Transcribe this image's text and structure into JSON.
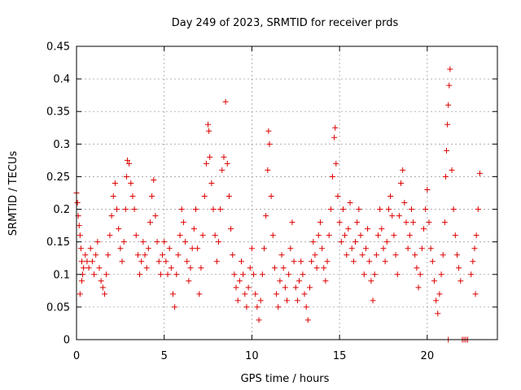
{
  "chart_data": {
    "type": "scatter",
    "title": "Day 249 of 2023, SRMTID for receiver prds",
    "xlabel": "GPS time / hours",
    "ylabel": "SRMTID / TECUs",
    "xlim": [
      0,
      24
    ],
    "ylim": [
      0,
      0.45
    ],
    "xticks": [
      0,
      5,
      10,
      15,
      20
    ],
    "xtick_labels": [
      "0",
      "5",
      "10",
      "15",
      "20"
    ],
    "yticks": [
      0,
      0.05,
      0.1,
      0.15,
      0.2,
      0.25,
      0.3,
      0.35,
      0.4,
      0.45
    ],
    "ytick_labels": [
      "0",
      "0.05",
      "0.1",
      "0.15",
      "0.2",
      "0.25",
      "0.3",
      "0.35",
      "0.4",
      "0.45"
    ],
    "grid": true,
    "marker": "+",
    "color": "#dd0000",
    "series": [
      {
        "name": "prds",
        "points": [
          [
            0.0,
            0.225
          ],
          [
            0.05,
            0.21
          ],
          [
            0.1,
            0.19
          ],
          [
            0.15,
            0.175
          ],
          [
            0.2,
            0.16
          ],
          [
            0.25,
            0.14
          ],
          [
            0.3,
            0.12
          ],
          [
            0.35,
            0.1
          ],
          [
            0.2,
            0.07
          ],
          [
            0.3,
            0.09
          ],
          [
            0.4,
            0.11
          ],
          [
            0.5,
            0.13
          ],
          [
            0.6,
            0.12
          ],
          [
            0.7,
            0.11
          ],
          [
            0.8,
            0.14
          ],
          [
            0.9,
            0.12
          ],
          [
            1.0,
            0.1
          ],
          [
            1.1,
            0.13
          ],
          [
            1.2,
            0.15
          ],
          [
            1.3,
            0.11
          ],
          [
            1.4,
            0.09
          ],
          [
            1.5,
            0.08
          ],
          [
            1.6,
            0.07
          ],
          [
            1.7,
            0.1
          ],
          [
            1.8,
            0.13
          ],
          [
            1.9,
            0.16
          ],
          [
            2.0,
            0.19
          ],
          [
            2.1,
            0.22
          ],
          [
            2.2,
            0.24
          ],
          [
            2.3,
            0.2
          ],
          [
            2.4,
            0.17
          ],
          [
            2.5,
            0.14
          ],
          [
            2.6,
            0.12
          ],
          [
            2.7,
            0.15
          ],
          [
            2.8,
            0.2
          ],
          [
            2.85,
            0.25
          ],
          [
            2.9,
            0.275
          ],
          [
            3.0,
            0.27
          ],
          [
            3.1,
            0.24
          ],
          [
            3.2,
            0.22
          ],
          [
            3.3,
            0.2
          ],
          [
            3.4,
            0.16
          ],
          [
            3.5,
            0.13
          ],
          [
            3.6,
            0.1
          ],
          [
            3.7,
            0.12
          ],
          [
            3.8,
            0.15
          ],
          [
            3.9,
            0.13
          ],
          [
            4.0,
            0.11
          ],
          [
            4.1,
            0.14
          ],
          [
            4.2,
            0.18
          ],
          [
            4.3,
            0.22
          ],
          [
            4.4,
            0.245
          ],
          [
            4.5,
            0.19
          ],
          [
            4.6,
            0.15
          ],
          [
            4.7,
            0.12
          ],
          [
            4.8,
            0.1
          ],
          [
            4.9,
            0.13
          ],
          [
            5.0,
            0.15
          ],
          [
            5.1,
            0.12
          ],
          [
            5.2,
            0.1
          ],
          [
            5.3,
            0.14
          ],
          [
            5.4,
            0.11
          ],
          [
            5.5,
            0.07
          ],
          [
            5.6,
            0.05
          ],
          [
            5.7,
            0.1
          ],
          [
            5.8,
            0.13
          ],
          [
            5.9,
            0.16
          ],
          [
            6.0,
            0.2
          ],
          [
            6.1,
            0.18
          ],
          [
            6.2,
            0.15
          ],
          [
            6.3,
            0.12
          ],
          [
            6.4,
            0.09
          ],
          [
            6.5,
            0.11
          ],
          [
            6.6,
            0.14
          ],
          [
            6.7,
            0.17
          ],
          [
            6.8,
            0.2
          ],
          [
            6.9,
            0.14
          ],
          [
            7.0,
            0.07
          ],
          [
            7.1,
            0.11
          ],
          [
            7.2,
            0.16
          ],
          [
            7.3,
            0.22
          ],
          [
            7.4,
            0.27
          ],
          [
            7.5,
            0.33
          ],
          [
            7.55,
            0.32
          ],
          [
            7.6,
            0.28
          ],
          [
            7.7,
            0.24
          ],
          [
            7.8,
            0.2
          ],
          [
            7.9,
            0.16
          ],
          [
            8.0,
            0.12
          ],
          [
            8.1,
            0.15
          ],
          [
            8.2,
            0.2
          ],
          [
            8.3,
            0.26
          ],
          [
            8.4,
            0.28
          ],
          [
            8.5,
            0.365
          ],
          [
            8.6,
            0.27
          ],
          [
            8.7,
            0.22
          ],
          [
            8.8,
            0.17
          ],
          [
            8.9,
            0.13
          ],
          [
            9.0,
            0.1
          ],
          [
            9.1,
            0.08
          ],
          [
            9.2,
            0.06
          ],
          [
            9.3,
            0.09
          ],
          [
            9.4,
            0.12
          ],
          [
            9.5,
            0.1
          ],
          [
            9.6,
            0.07
          ],
          [
            9.7,
            0.05
          ],
          [
            9.8,
            0.08
          ],
          [
            9.9,
            0.11
          ],
          [
            10.0,
            0.14
          ],
          [
            10.1,
            0.1
          ],
          [
            10.2,
            0.07
          ],
          [
            10.3,
            0.05
          ],
          [
            10.4,
            0.03
          ],
          [
            10.5,
            0.06
          ],
          [
            10.6,
            0.1
          ],
          [
            10.7,
            0.14
          ],
          [
            10.8,
            0.19
          ],
          [
            10.9,
            0.26
          ],
          [
            10.95,
            0.32
          ],
          [
            11.0,
            0.3
          ],
          [
            11.1,
            0.22
          ],
          [
            11.2,
            0.16
          ],
          [
            11.3,
            0.11
          ],
          [
            11.4,
            0.07
          ],
          [
            11.5,
            0.05
          ],
          [
            11.6,
            0.09
          ],
          [
            11.7,
            0.13
          ],
          [
            11.8,
            0.11
          ],
          [
            11.9,
            0.08
          ],
          [
            12.0,
            0.06
          ],
          [
            12.1,
            0.1
          ],
          [
            12.2,
            0.14
          ],
          [
            12.3,
            0.18
          ],
          [
            12.4,
            0.12
          ],
          [
            12.5,
            0.08
          ],
          [
            12.6,
            0.06
          ],
          [
            12.7,
            0.09
          ],
          [
            12.8,
            0.12
          ],
          [
            12.9,
            0.1
          ],
          [
            13.0,
            0.07
          ],
          [
            13.1,
            0.05
          ],
          [
            13.2,
            0.03
          ],
          [
            13.3,
            0.08
          ],
          [
            13.4,
            0.12
          ],
          [
            13.5,
            0.15
          ],
          [
            13.6,
            0.13
          ],
          [
            13.7,
            0.11
          ],
          [
            13.8,
            0.16
          ],
          [
            13.9,
            0.18
          ],
          [
            14.0,
            0.14
          ],
          [
            14.1,
            0.11
          ],
          [
            14.2,
            0.09
          ],
          [
            14.3,
            0.12
          ],
          [
            14.4,
            0.16
          ],
          [
            14.5,
            0.2
          ],
          [
            14.6,
            0.25
          ],
          [
            14.7,
            0.31
          ],
          [
            14.75,
            0.325
          ],
          [
            14.8,
            0.27
          ],
          [
            14.9,
            0.22
          ],
          [
            15.0,
            0.18
          ],
          [
            15.1,
            0.15
          ],
          [
            15.2,
            0.2
          ],
          [
            15.3,
            0.16
          ],
          [
            15.4,
            0.13
          ],
          [
            15.5,
            0.17
          ],
          [
            15.6,
            0.21
          ],
          [
            15.7,
            0.14
          ],
          [
            15.8,
            0.12
          ],
          [
            15.9,
            0.15
          ],
          [
            16.0,
            0.18
          ],
          [
            16.1,
            0.2
          ],
          [
            16.2,
            0.16
          ],
          [
            16.3,
            0.13
          ],
          [
            16.4,
            0.1
          ],
          [
            16.5,
            0.14
          ],
          [
            16.6,
            0.17
          ],
          [
            16.7,
            0.12
          ],
          [
            16.8,
            0.09
          ],
          [
            16.9,
            0.06
          ],
          [
            17.0,
            0.1
          ],
          [
            17.1,
            0.13
          ],
          [
            17.2,
            0.16
          ],
          [
            17.3,
            0.2
          ],
          [
            17.4,
            0.17
          ],
          [
            17.5,
            0.14
          ],
          [
            17.6,
            0.12
          ],
          [
            17.7,
            0.15
          ],
          [
            17.8,
            0.2
          ],
          [
            17.9,
            0.22
          ],
          [
            18.0,
            0.19
          ],
          [
            18.1,
            0.16
          ],
          [
            18.2,
            0.13
          ],
          [
            18.3,
            0.1
          ],
          [
            18.4,
            0.19
          ],
          [
            18.5,
            0.24
          ],
          [
            18.6,
            0.26
          ],
          [
            18.7,
            0.21
          ],
          [
            18.8,
            0.18
          ],
          [
            18.9,
            0.14
          ],
          [
            19.0,
            0.16
          ],
          [
            19.1,
            0.2
          ],
          [
            19.2,
            0.18
          ],
          [
            19.3,
            0.13
          ],
          [
            19.4,
            0.11
          ],
          [
            19.5,
            0.08
          ],
          [
            19.6,
            0.1
          ],
          [
            19.7,
            0.14
          ],
          [
            19.8,
            0.17
          ],
          [
            19.9,
            0.2
          ],
          [
            20.0,
            0.23
          ],
          [
            20.1,
            0.18
          ],
          [
            20.2,
            0.14
          ],
          [
            20.3,
            0.12
          ],
          [
            20.4,
            0.09
          ],
          [
            20.5,
            0.06
          ],
          [
            20.6,
            0.04
          ],
          [
            20.7,
            0.07
          ],
          [
            20.8,
            0.1
          ],
          [
            20.9,
            0.13
          ],
          [
            21.0,
            0.18
          ],
          [
            21.05,
            0.25
          ],
          [
            21.1,
            0.29
          ],
          [
            21.15,
            0.33
          ],
          [
            21.2,
            0.36
          ],
          [
            21.25,
            0.39
          ],
          [
            21.3,
            0.415
          ],
          [
            21.4,
            0.26
          ],
          [
            21.5,
            0.2
          ],
          [
            21.6,
            0.16
          ],
          [
            21.7,
            0.13
          ],
          [
            21.8,
            0.11
          ],
          [
            21.9,
            0.09
          ],
          [
            21.2,
            0.0
          ],
          [
            22.0,
            0.0
          ],
          [
            22.1,
            0.0
          ],
          [
            22.2,
            0.0
          ],
          [
            22.3,
            0.0
          ],
          [
            22.5,
            0.1
          ],
          [
            22.6,
            0.12
          ],
          [
            22.7,
            0.14
          ],
          [
            22.8,
            0.16
          ],
          [
            22.9,
            0.2
          ],
          [
            23.0,
            0.255
          ],
          [
            22.75,
            0.07
          ]
        ]
      }
    ]
  }
}
